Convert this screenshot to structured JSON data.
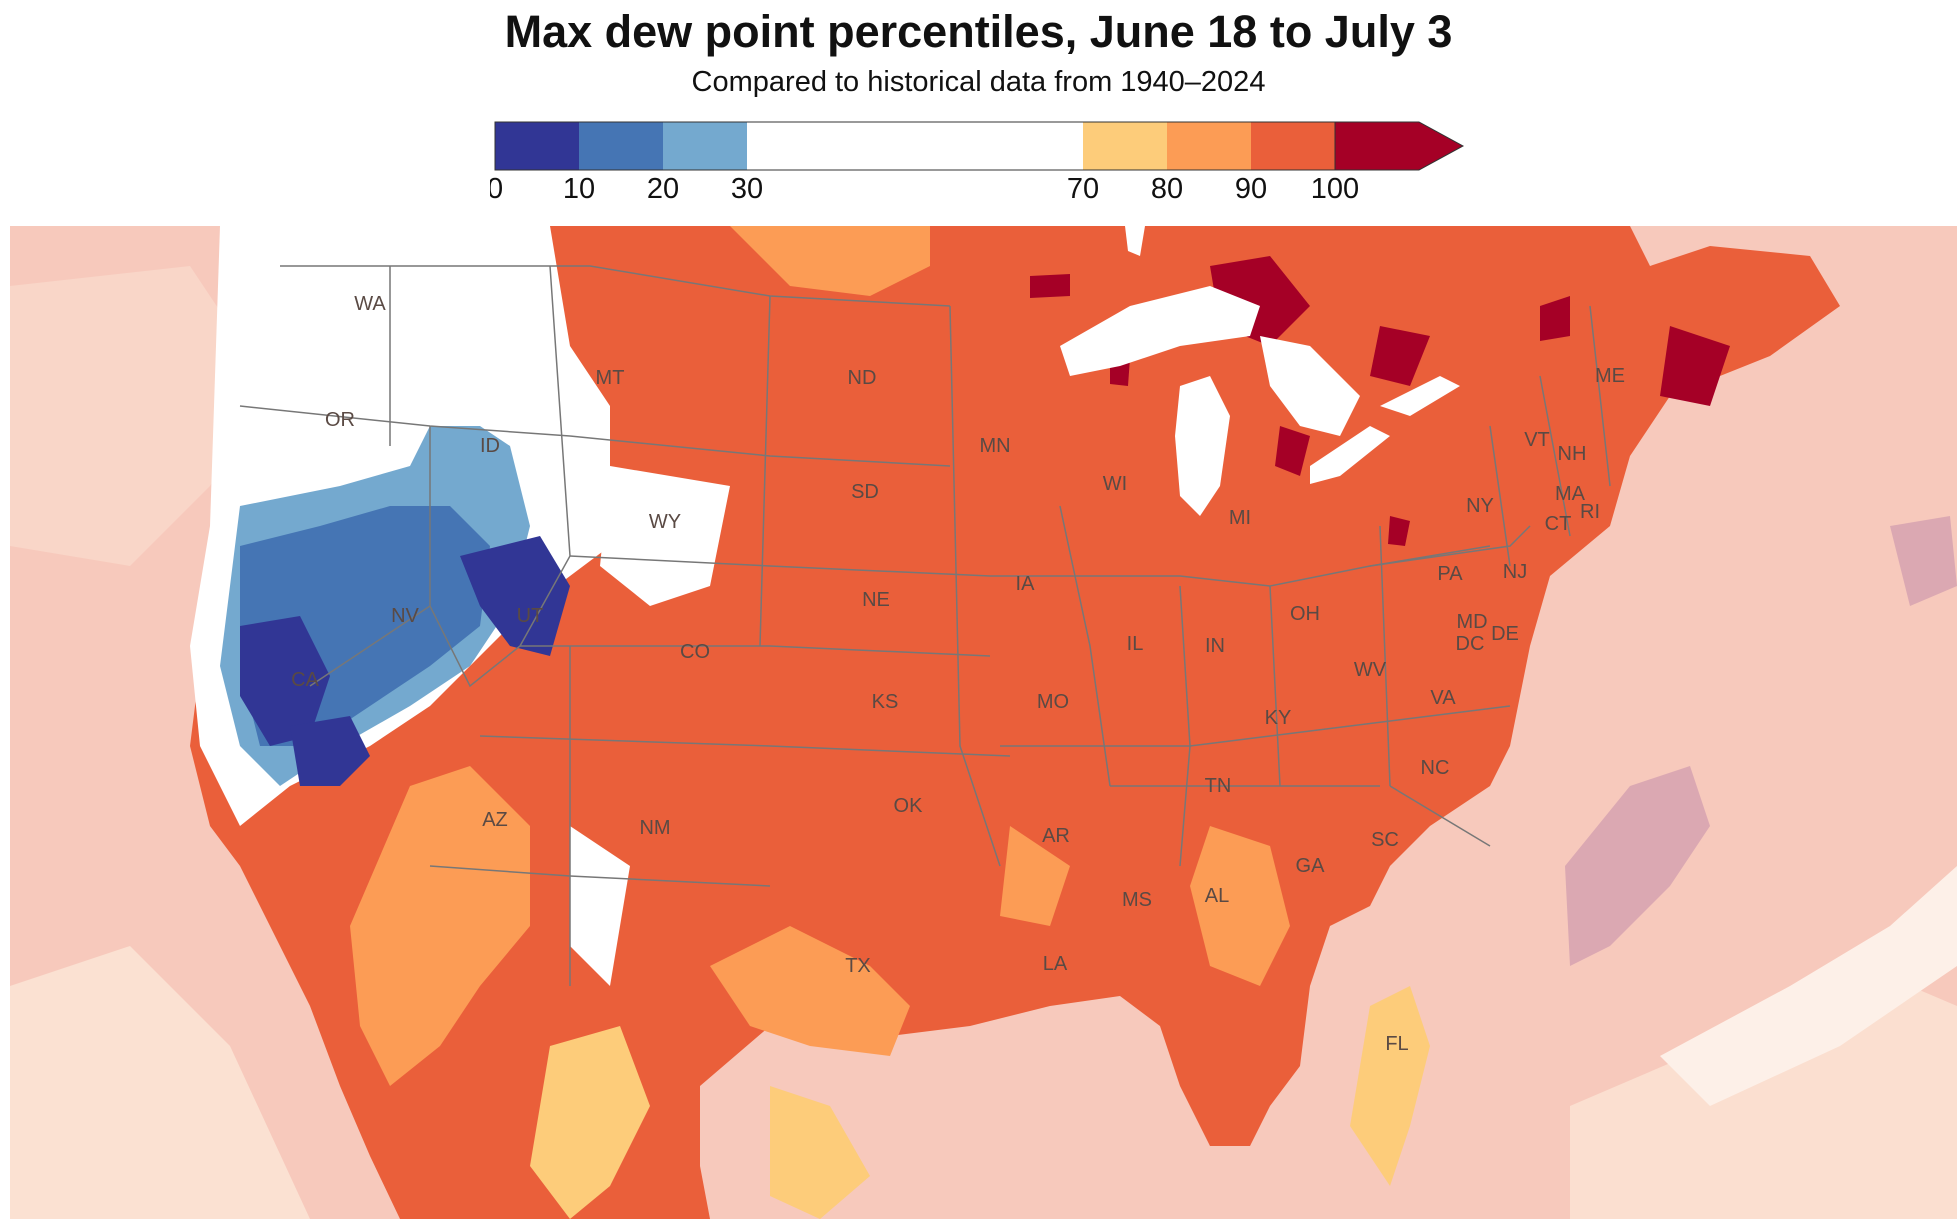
{
  "title": "Max dew point percentiles, June 18 to July 3",
  "subtitle": "Compared to historical data from 1940–2024",
  "legend": {
    "bins": [
      {
        "from": 0,
        "to": 10,
        "color": "#313695"
      },
      {
        "from": 10,
        "to": 20,
        "color": "#4575b4"
      },
      {
        "from": 20,
        "to": 30,
        "color": "#74a9cf"
      },
      {
        "from": 30,
        "to": 70,
        "color": "#ffffff"
      },
      {
        "from": 70,
        "to": 80,
        "color": "#fdcc7a"
      },
      {
        "from": 80,
        "to": 90,
        "color": "#fc9c55"
      },
      {
        "from": 90,
        "to": 100,
        "color": "#ea5f3a"
      },
      {
        "from": 100,
        "to": 100,
        "color": "#a50026"
      }
    ],
    "tick_labels": [
      "0",
      "10",
      "20",
      "30",
      "70",
      "80",
      "90",
      "100"
    ]
  },
  "colors": {
    "ocean_fill": "#f7c9bc",
    "land_dominant": "#ea5f3a",
    "lakes": "#ffffff",
    "state_borders": "#777777"
  },
  "state_labels": [
    "WA",
    "OR",
    "ID",
    "MT",
    "WY",
    "NV",
    "CA",
    "UT",
    "CO",
    "AZ",
    "NM",
    "ND",
    "SD",
    "NE",
    "KS",
    "OK",
    "TX",
    "MN",
    "IA",
    "MO",
    "AR",
    "LA",
    "WI",
    "IL",
    "MS",
    "MI",
    "IN",
    "KY",
    "TN",
    "AL",
    "GA",
    "FL",
    "OH",
    "WV",
    "VA",
    "NC",
    "SC",
    "PA",
    "NY",
    "MD",
    "DE",
    "DC",
    "NJ",
    "VT",
    "NH",
    "ME",
    "MA",
    "CT",
    "RI"
  ]
}
